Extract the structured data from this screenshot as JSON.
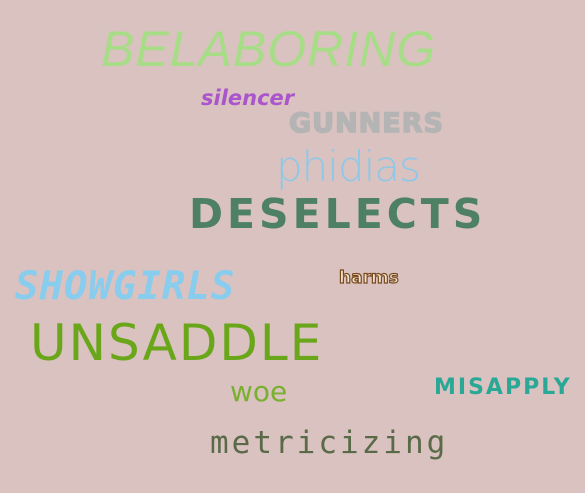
{
  "words": [
    {
      "text": "BELABORING",
      "color": "#a8dd88"
    },
    {
      "text": "silencer",
      "color": "#aa55cc"
    },
    {
      "text": "GUNNERS",
      "color": "#b4b4b4"
    },
    {
      "text": "phidias",
      "color": "#8ec8e8"
    },
    {
      "text": "DESELECTS",
      "color": "#4e8064"
    },
    {
      "text": "SHOWGIRLS",
      "color": "#88ccee"
    },
    {
      "text": "harms",
      "color": "#f0e4d0"
    },
    {
      "text": "UNSADDLE",
      "color": "#6aa61a"
    },
    {
      "text": "woe",
      "color": "#7ab030"
    },
    {
      "text": "MISAPPLY",
      "color": "#2aa896"
    },
    {
      "text": "metricizing",
      "color": "#5a6a48"
    }
  ]
}
